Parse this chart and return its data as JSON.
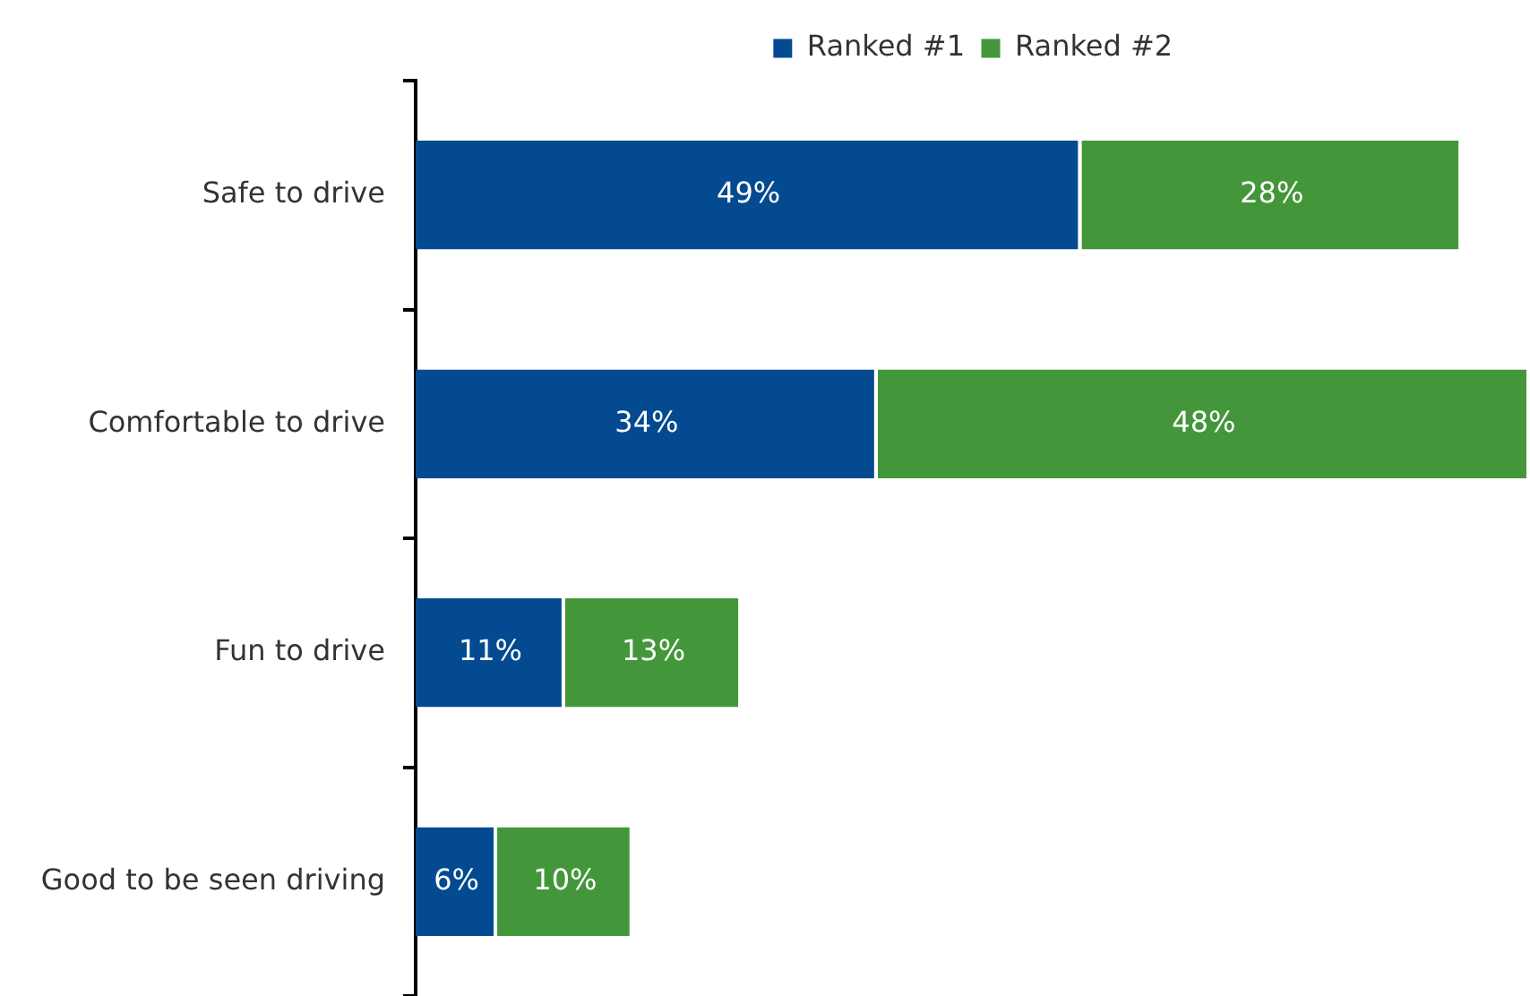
{
  "chart_data": {
    "type": "bar",
    "orientation": "horizontal",
    "stacked": true,
    "categories": [
      "Safe to drive",
      "Comfortable to drive",
      "Fun to drive",
      "Good to be seen driving"
    ],
    "series": [
      {
        "name": "Ranked #1",
        "color": "#034a91",
        "values": [
          49,
          34,
          11,
          6
        ],
        "value_labels": [
          "49%",
          "34%",
          "11%",
          "6%"
        ]
      },
      {
        "name": "Ranked #2",
        "color": "#43973a",
        "values": [
          28,
          48,
          13,
          10
        ],
        "value_labels": [
          "28%",
          "48%",
          "13%",
          "10%"
        ]
      }
    ],
    "legend": "top",
    "tick_labels": "y"
  }
}
